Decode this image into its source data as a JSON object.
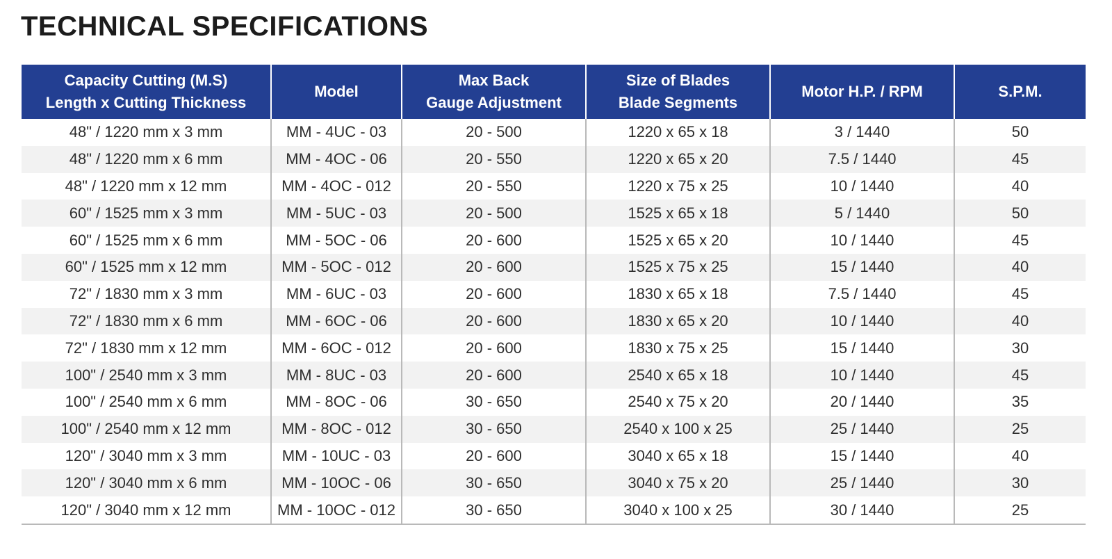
{
  "page": {
    "title": "TECHNICAL SPECIFICATIONS"
  },
  "colors": {
    "header_bg": "#233f92",
    "header_text": "#ffffff",
    "stripe_bg": "#f2f2f2",
    "divider": "#b9b9b9"
  },
  "table": {
    "headers": [
      "Capacity Cutting (M.S)\nLength x Cutting Thickness",
      "Model",
      "Max Back\nGauge Adjustment",
      "Size of Blades\nBlade Segments",
      "Motor H.P. / RPM",
      "S.P.M."
    ],
    "rows": [
      [
        "48\" / 1220 mm x 3 mm",
        "MM - 4UC - 03",
        "20 - 500",
        "1220 x 65 x 18",
        "3 / 1440",
        "50"
      ],
      [
        "48\" / 1220 mm x 6 mm",
        "MM - 4OC - 06",
        "20 - 550",
        "1220 x 65 x 20",
        "7.5 / 1440",
        "45"
      ],
      [
        "48\" / 1220 mm x 12 mm",
        "MM - 4OC - 012",
        "20 - 550",
        "1220 x 75 x 25",
        "10 / 1440",
        "40"
      ],
      [
        "60\" / 1525 mm x 3 mm",
        "MM - 5UC - 03",
        "20 - 500",
        "1525 x 65 x 18",
        "5 / 1440",
        "50"
      ],
      [
        "60\" / 1525 mm x 6 mm",
        "MM - 5OC - 06",
        "20 - 600",
        "1525 x 65 x 20",
        "10 / 1440",
        "45"
      ],
      [
        "60\" / 1525 mm x 12 mm",
        "MM - 5OC - 012",
        "20 - 600",
        "1525 x 75 x 25",
        "15 / 1440",
        "40"
      ],
      [
        "72\" / 1830 mm x 3 mm",
        "MM - 6UC - 03",
        "20 - 600",
        "1830 x 65 x 18",
        "7.5 / 1440",
        "45"
      ],
      [
        "72\" / 1830 mm x 6 mm",
        "MM - 6OC - 06",
        "20 - 600",
        "1830 x 65 x 20",
        "10 / 1440",
        "40"
      ],
      [
        "72\" / 1830 mm x 12 mm",
        "MM - 6OC - 012",
        "20 - 600",
        "1830 x 75 x 25",
        "15 / 1440",
        "30"
      ],
      [
        "100\" / 2540 mm x 3 mm",
        "MM - 8UC - 03",
        "20 - 600",
        "2540 x 65 x 18",
        "10 / 1440",
        "45"
      ],
      [
        "100\" / 2540 mm x 6 mm",
        "MM - 8OC - 06",
        "30 - 650",
        "2540 x 75 x 20",
        "20 / 1440",
        "35"
      ],
      [
        "100\" / 2540 mm x 12 mm",
        "MM - 8OC - 012",
        "30 - 650",
        "2540 x 100 x 25",
        "25 / 1440",
        "25"
      ],
      [
        "120\" / 3040 mm x 3 mm",
        "MM - 10UC - 03",
        "20 - 600",
        "3040 x 65 x 18",
        "15 / 1440",
        "40"
      ],
      [
        "120\" / 3040 mm x 6 mm",
        "MM - 10OC - 06",
        "30 - 650",
        "3040 x 75 x 20",
        "25 / 1440",
        "30"
      ],
      [
        "120\" / 3040 mm x 12 mm",
        "MM - 10OC - 012",
        "30 - 650",
        "3040 x 100 x 25",
        "30 / 1440",
        "25"
      ]
    ]
  }
}
